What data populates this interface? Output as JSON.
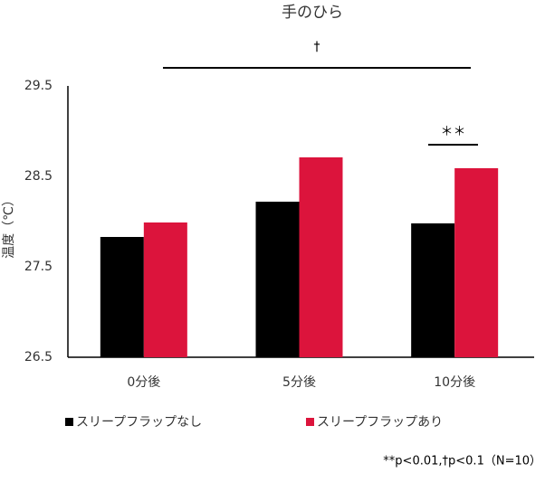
{
  "chart_data": {
    "type": "bar",
    "title": "手のひら",
    "y_label": "温度（℃）",
    "categories": [
      "0分後",
      "5分後",
      "10分後"
    ],
    "series": [
      {
        "name": "スリープフラップなし",
        "color": "#000000",
        "values": [
          27.83,
          28.22,
          27.98
        ]
      },
      {
        "name": "スリープフラップあり",
        "color": "#dc143c",
        "values": [
          27.99,
          28.71,
          28.59
        ]
      }
    ],
    "ylim": [
      26.5,
      29.5
    ],
    "yticks": [
      26.5,
      27.5,
      28.5,
      29.5
    ],
    "grid": false,
    "legend": "bottom",
    "annotations": [
      "†",
      "＊＊"
    ],
    "footnote": "**p<0.01,†p<0.1（N=10）"
  }
}
